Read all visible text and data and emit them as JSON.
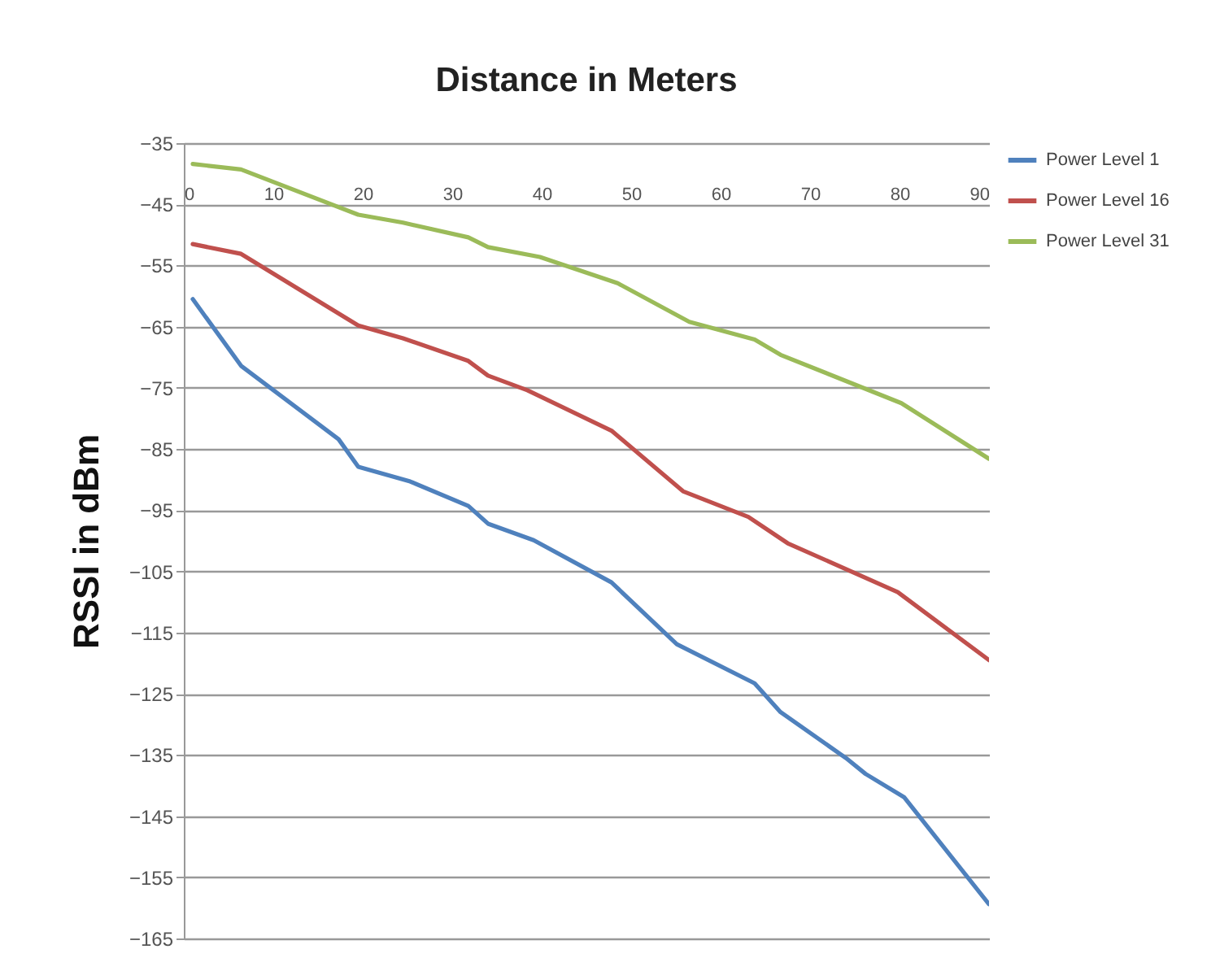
{
  "chart_data": {
    "type": "line",
    "title": "Distance in Meters",
    "ylabel": "RSSI in dBm",
    "xlim": [
      0,
      90
    ],
    "xticks": [
      0,
      10,
      20,
      30,
      40,
      50,
      60,
      70,
      80,
      90
    ],
    "ylim": [
      -165,
      -35
    ],
    "yticks": [
      -35,
      -45,
      -55,
      -65,
      -75,
      -85,
      -95,
      -105,
      -115,
      -125,
      -135,
      -145,
      -155,
      -165
    ],
    "grid": "y",
    "legend": "right",
    "series": [
      {
        "name": "Power Level 1",
        "color": "#4f81bd",
        "x": [
          1,
          6.4,
          17.3,
          19.5,
          25.3,
          31.8,
          34,
          39.1,
          47.8,
          55.1,
          63.8,
          66.7,
          74,
          76.2,
          80.5,
          90
        ],
        "values": [
          -60.5,
          -71.4,
          -83.4,
          -87.9,
          -90.3,
          -94.3,
          -97.2,
          -99.9,
          -106.8,
          -116.9,
          -123.3,
          -128,
          -135.5,
          -138.1,
          -141.9,
          -159.4
        ]
      },
      {
        "name": "Power Level 16",
        "color": "#c0504d",
        "x": [
          1,
          6.4,
          19.5,
          24.5,
          31.8,
          34,
          38.4,
          47.8,
          55.8,
          63.1,
          67.5,
          79.8,
          90
        ],
        "values": [
          -51.5,
          -53.1,
          -64.8,
          -66.9,
          -70.6,
          -73,
          -75.4,
          -82,
          -91.9,
          -96.1,
          -100.4,
          -108.4,
          -119.5
        ]
      },
      {
        "name": "Power Level 31",
        "color": "#9bbb59",
        "x": [
          1,
          6.4,
          19.5,
          24.5,
          31.8,
          34,
          39.8,
          48.5,
          56.5,
          63.8,
          66.7,
          80.2,
          90
        ],
        "values": [
          -38.4,
          -39.3,
          -46.7,
          -48,
          -50.4,
          -52,
          -53.6,
          -57.9,
          -64.2,
          -67.1,
          -69.6,
          -77.5,
          -86.6
        ]
      }
    ]
  }
}
